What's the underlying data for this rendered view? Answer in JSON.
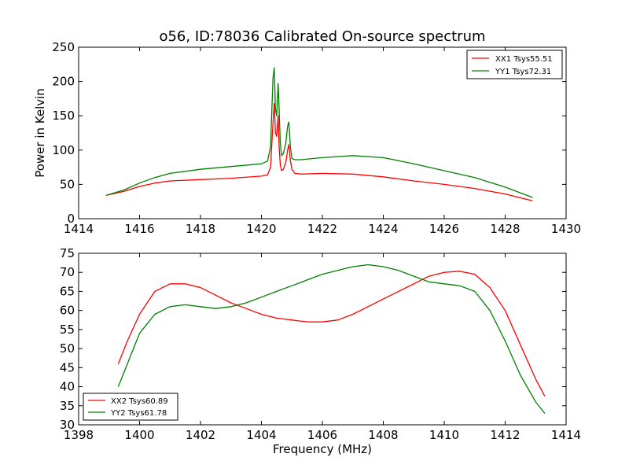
{
  "chart_data": [
    {
      "type": "line",
      "title": "o56, ID:78036 Calibrated On-source spectrum",
      "xlabel": "",
      "ylabel": "Power in Kelvin",
      "xlim": [
        1414,
        1430
      ],
      "ylim": [
        0,
        250
      ],
      "xticks": [
        "1414",
        "1416",
        "1418",
        "1420",
        "1422",
        "1424",
        "1426",
        "1428",
        "1430"
      ],
      "yticks": [
        "0",
        "50",
        "100",
        "150",
        "200",
        "250"
      ],
      "legend_position": "top-right",
      "series": [
        {
          "name": "XX1 Tsys55.51",
          "color": "#ff0000",
          "x": [
            1414.9,
            1415.5,
            1416,
            1416.5,
            1417,
            1418,
            1419,
            1420,
            1420.2,
            1420.3,
            1420.38,
            1420.42,
            1420.46,
            1420.5,
            1420.55,
            1420.58,
            1420.62,
            1420.66,
            1420.72,
            1420.8,
            1420.86,
            1420.9,
            1420.95,
            1421.0,
            1421.1,
            1421.3,
            1422,
            1423,
            1424,
            1425,
            1426,
            1427,
            1428,
            1428.9
          ],
          "y": [
            34,
            40,
            47,
            52,
            55,
            57,
            59,
            62,
            64,
            75,
            140,
            168,
            125,
            120,
            150,
            105,
            78,
            70,
            72,
            82,
            100,
            108,
            85,
            72,
            66,
            65,
            66,
            65,
            61,
            55,
            50,
            44,
            36,
            26
          ]
        },
        {
          "name": "YY1 Tsys72.31",
          "color": "#008000",
          "x": [
            1414.9,
            1415.5,
            1416,
            1416.5,
            1417,
            1418,
            1419,
            1420,
            1420.2,
            1420.3,
            1420.38,
            1420.42,
            1420.46,
            1420.5,
            1420.55,
            1420.58,
            1420.62,
            1420.66,
            1420.72,
            1420.8,
            1420.86,
            1420.9,
            1420.95,
            1421.0,
            1421.1,
            1421.3,
            1422,
            1423,
            1424,
            1425,
            1426,
            1427,
            1428,
            1428.9
          ],
          "y": [
            34,
            42,
            52,
            60,
            66,
            72,
            76,
            80,
            84,
            105,
            205,
            220,
            160,
            150,
            197,
            160,
            110,
            92,
            95,
            110,
            135,
            141,
            105,
            88,
            86,
            86,
            89,
            92,
            89,
            80,
            70,
            60,
            46,
            31
          ]
        }
      ]
    },
    {
      "type": "line",
      "title": "",
      "xlabel": "Frequency (MHz)",
      "ylabel": "",
      "xlim": [
        1398,
        1414
      ],
      "ylim": [
        30,
        75
      ],
      "xticks": [
        "1398",
        "1400",
        "1402",
        "1404",
        "1406",
        "1408",
        "1410",
        "1412",
        "1414"
      ],
      "yticks": [
        "30",
        "35",
        "40",
        "45",
        "50",
        "55",
        "60",
        "65",
        "70",
        "75"
      ],
      "legend_position": "bottom-left",
      "series": [
        {
          "name": "XX2 Tsys60.89",
          "color": "#ff0000",
          "x": [
            1399.3,
            1399.6,
            1400,
            1400.5,
            1401,
            1401.5,
            1402,
            1402.5,
            1403,
            1403.5,
            1404,
            1404.5,
            1405,
            1405.5,
            1406,
            1406.5,
            1407,
            1407.5,
            1408,
            1408.5,
            1409,
            1409.5,
            1410,
            1410.5,
            1411,
            1411.5,
            1412,
            1412.5,
            1413,
            1413.3
          ],
          "y": [
            46,
            52,
            59,
            65,
            67,
            67,
            66,
            64,
            62,
            60.5,
            59,
            58,
            57.5,
            57,
            57,
            57.5,
            59,
            61,
            63,
            65,
            67,
            69,
            70,
            70.3,
            69.5,
            66,
            60,
            51,
            42,
            37.5
          ]
        },
        {
          "name": "YY2 Tsys61.78",
          "color": "#008000",
          "x": [
            1399.3,
            1399.6,
            1400,
            1400.5,
            1401,
            1401.5,
            1402,
            1402.5,
            1403,
            1403.5,
            1404,
            1404.5,
            1405,
            1405.5,
            1406,
            1406.5,
            1407,
            1407.5,
            1408,
            1408.5,
            1409,
            1409.5,
            1410,
            1410.5,
            1411,
            1411.5,
            1412,
            1412.5,
            1413,
            1413.3
          ],
          "y": [
            40,
            46,
            54,
            59,
            61,
            61.5,
            61,
            60.5,
            61,
            62,
            63.5,
            65,
            66.5,
            68,
            69.5,
            70.5,
            71.5,
            72,
            71.5,
            70.5,
            69,
            67.5,
            67,
            66.5,
            65,
            60,
            52,
            43,
            36,
            33
          ]
        }
      ]
    }
  ]
}
